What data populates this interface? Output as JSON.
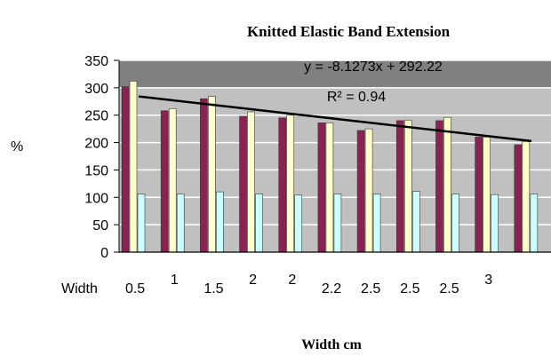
{
  "chart_data": {
    "type": "bar",
    "title": "Knitted Elastic Band Extension",
    "xlabel": "Width cm",
    "ylabel": "%",
    "x_axis_prefix": "Width",
    "categories": [
      "0.5",
      "1",
      "1.5",
      "2",
      "2",
      "2.2",
      "2.5",
      "2.5",
      "2.5",
      "3",
      ""
    ],
    "ylim": [
      0,
      350
    ],
    "yticks": [
      0,
      50,
      100,
      150,
      200,
      250,
      300,
      350
    ],
    "grid": true,
    "legend": "none",
    "series": [
      {
        "color": "#8b2252",
        "values": [
          302,
          258,
          280,
          248,
          245,
          236,
          222,
          240,
          240,
          210,
          196
        ]
      },
      {
        "color": "#ffffcc",
        "values": [
          312,
          262,
          284,
          256,
          250,
          236,
          225,
          241,
          246,
          210,
          202
        ]
      },
      {
        "color": "#ccffff",
        "values": [
          106,
          106,
          110,
          106,
          104,
          106,
          106,
          111,
          106,
          105,
          106
        ]
      }
    ],
    "trendline": {
      "equation": "y = -8.1273x + 292.22",
      "r_squared": "R² = 0.94",
      "slope": -8.1273,
      "intercept": 292.22
    },
    "colors": {
      "plot_background": "#c0c0c0",
      "top_band": "#808080",
      "gridline": "#ffffff",
      "trendline": "#000000"
    }
  }
}
